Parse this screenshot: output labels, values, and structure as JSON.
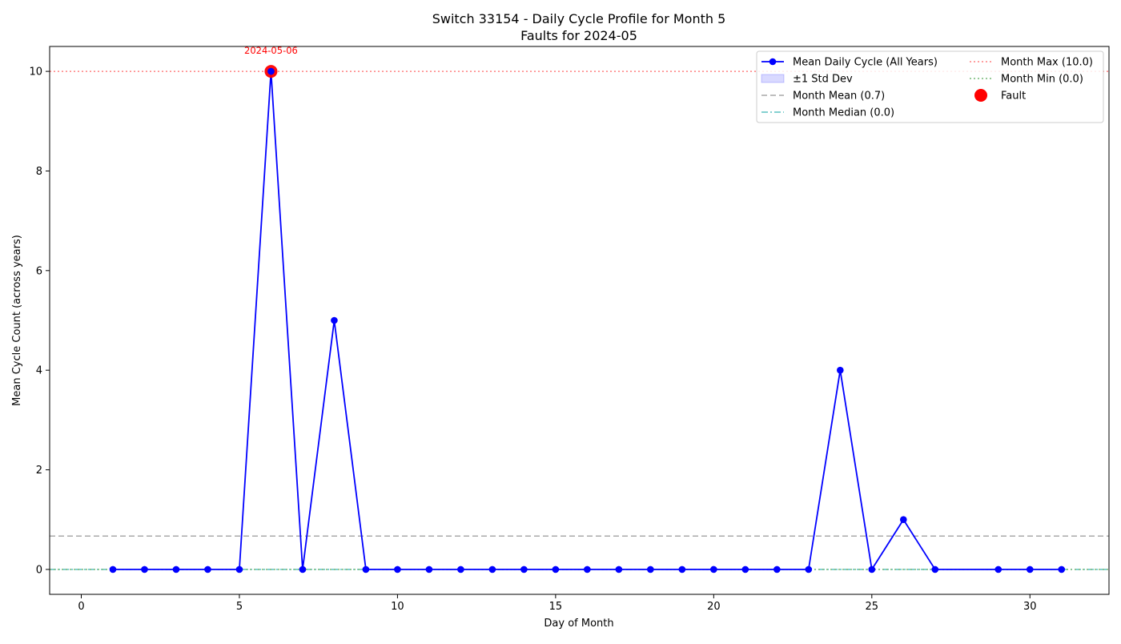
{
  "chart_data": {
    "type": "line",
    "title": "Switch 33154 - Daily Cycle Profile for Month 5",
    "subtitle": "Faults for 2024-05",
    "xlabel": "Day of Month",
    "ylabel": "Mean Cycle Count (across years)",
    "xlim": [
      -1,
      32.5
    ],
    "ylim": [
      -0.5,
      10.5
    ],
    "xticks": [
      0,
      5,
      10,
      15,
      20,
      25,
      30
    ],
    "yticks": [
      0,
      2,
      4,
      6,
      8,
      10
    ],
    "grid": false,
    "legend_position": "top-right",
    "series": [
      {
        "name": "Mean Daily Cycle (All Years)",
        "color": "#0000ff",
        "x": [
          1,
          2,
          3,
          4,
          5,
          6,
          7,
          8,
          9,
          10,
          11,
          12,
          13,
          14,
          15,
          16,
          17,
          18,
          19,
          20,
          21,
          22,
          23,
          24,
          25,
          26,
          27,
          29,
          30,
          31
        ],
        "y": [
          0,
          0,
          0,
          0,
          0,
          10,
          0,
          5,
          0,
          0,
          0,
          0,
          0,
          0,
          0,
          0,
          0,
          0,
          0,
          0,
          0,
          0,
          0,
          4,
          0,
          1,
          0,
          0,
          0,
          0
        ]
      }
    ],
    "std_band": {
      "name": "±1 Std Dev",
      "color": "#0000ff"
    },
    "reference_lines": [
      {
        "name": "Month Mean (0.7)",
        "value": 0.67,
        "color": "#a9a9a9",
        "style": "dashed"
      },
      {
        "name": "Month Median (0.0)",
        "value": 0.0,
        "color": "#5bc0c0",
        "style": "dashdot"
      },
      {
        "name": "Month Max (10.0)",
        "value": 10.0,
        "color": "#ff8080",
        "style": "dotted"
      },
      {
        "name": "Month Min (0.0)",
        "value": 0.0,
        "color": "#77b877",
        "style": "dotted"
      }
    ],
    "faults": [
      {
        "x": 6,
        "y": 10,
        "label": "2024-05-06",
        "color": "#ff0000"
      }
    ],
    "fault_legend_label": "Fault"
  }
}
